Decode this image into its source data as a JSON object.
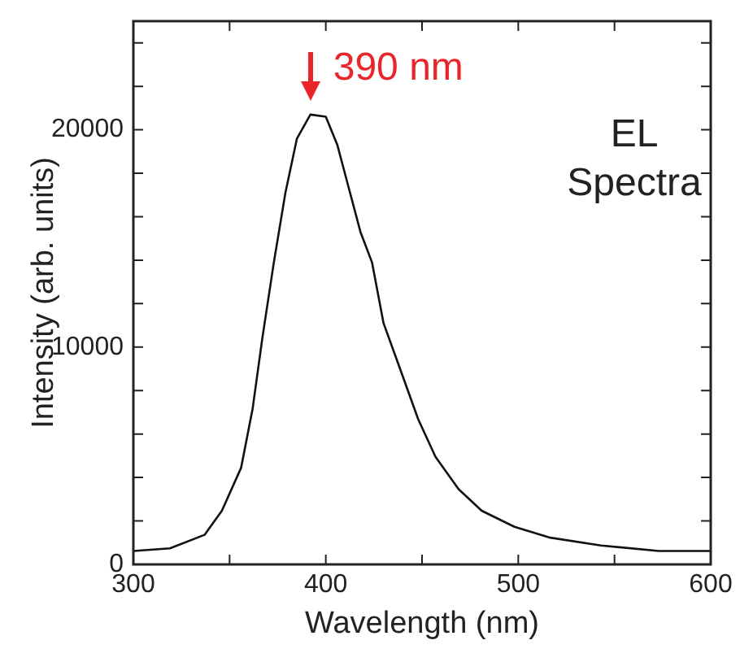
{
  "chart_data": {
    "type": "line",
    "xlabel": "Wavelength (nm)",
    "ylabel": "Intensity (arb. units)",
    "x": [
      300,
      319,
      337,
      346,
      356,
      362,
      367,
      373,
      379,
      385,
      392,
      400,
      406,
      412,
      418,
      424,
      430,
      439,
      448,
      457,
      469,
      481,
      498,
      516,
      543,
      573,
      600
    ],
    "series": [
      {
        "color": "#111111",
        "values": [
          620,
          740,
          1360,
          2470,
          4450,
          7180,
          10400,
          13900,
          17100,
          19600,
          20700,
          20600,
          19300,
          17300,
          15300,
          13900,
          11100,
          8900,
          6680,
          4950,
          3460,
          2470,
          1730,
          1240,
          870,
          620,
          620
        ]
      }
    ],
    "xlim": [
      300,
      600
    ],
    "xticks": [
      300,
      {
        "value": 350,
        "label": null
      },
      400,
      {
        "value": 450,
        "label": null
      },
      500,
      {
        "value": 550,
        "label": null
      },
      600
    ],
    "ylim": [
      0,
      25000
    ],
    "yticks": [
      0,
      {
        "value": 2000,
        "label": null
      },
      {
        "value": 4000,
        "label": null
      },
      {
        "value": 6000,
        "label": null
      },
      {
        "value": 8000,
        "label": null
      },
      10000,
      {
        "value": 12000,
        "label": null
      },
      {
        "value": 14000,
        "label": null
      },
      {
        "value": 16000,
        "label": null
      },
      {
        "value": 18000,
        "label": null
      },
      20000,
      {
        "value": 22000,
        "label": null
      },
      {
        "value": 24000,
        "label": null
      }
    ],
    "annotations": [
      "390 nm",
      "EL Spectra"
    ],
    "grid": false,
    "legend": false,
    "marker": "none",
    "line_style": "solid"
  }
}
